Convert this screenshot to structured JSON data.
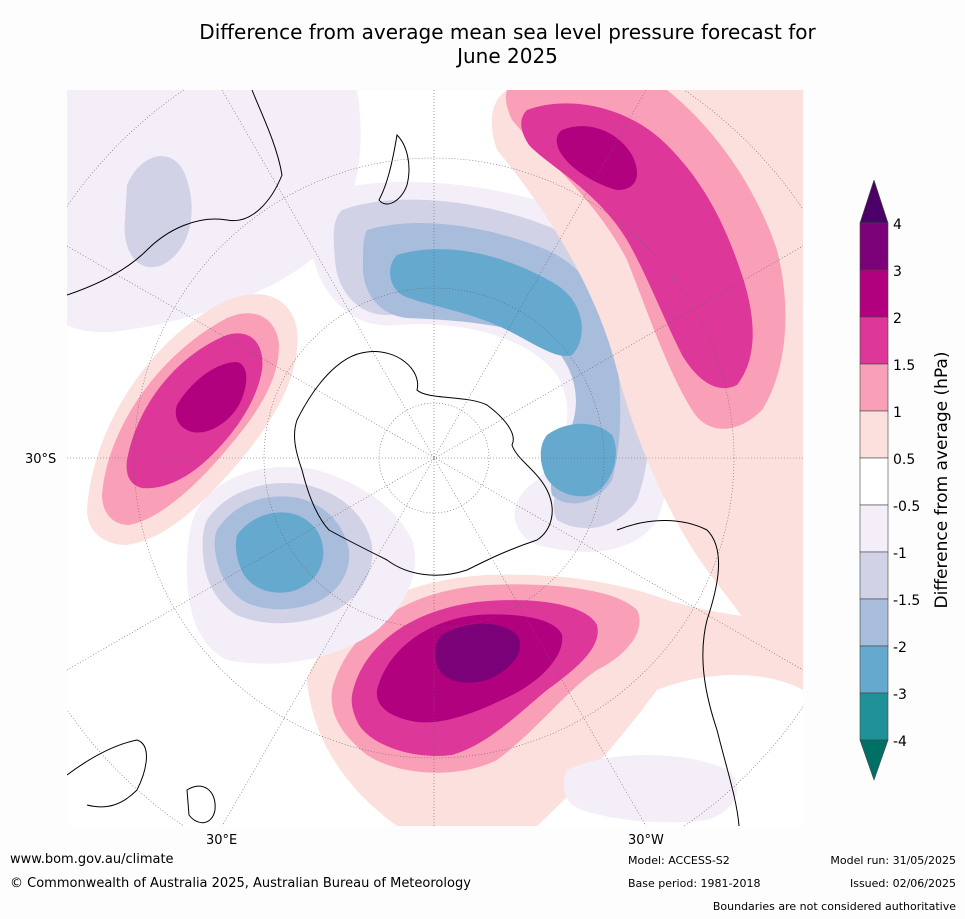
{
  "title_line1": "Difference from average mean sea level pressure forecast for",
  "title_line2": "June 2025",
  "map": {
    "lat_label": "30°S",
    "lon_label_east": "30°E",
    "lon_label_west": "30°W",
    "colors": {
      "m4": "#007066",
      "m3": "#1f9199",
      "m2": "#66a9cf",
      "m15": "#a8bddc",
      "m1": "#d1d2e6",
      "m05": "#f3eef7",
      "zero": "#ffffff",
      "p05": "#fbe0dd",
      "p1": "#f9a0b8",
      "p15": "#dc3799",
      "p2": "#b2017e",
      "p3": "#7a0177",
      "p4": "#4b0068",
      "land": "#000000",
      "grid": "#555555"
    }
  },
  "colorbar": {
    "label": "Difference from average (hPa)",
    "ticks": [
      "4",
      "3",
      "2",
      "1.5",
      "1",
      "0.5",
      "-0.5",
      "-1",
      "-1.5",
      "-2",
      "-3",
      "-4"
    ]
  },
  "footer": {
    "url": "www.bom.gov.au/climate",
    "copyright": "© Commonwealth of Australia 2025, Australian Bureau of Meteorology",
    "model": "Model: ACCESS-S2",
    "base_period": "Base period: 1981-2018",
    "model_run": "Model run: 31/05/2025",
    "issued": "Issued: 02/06/2025",
    "disclaimer": "Boundaries are not considered authoritative"
  }
}
